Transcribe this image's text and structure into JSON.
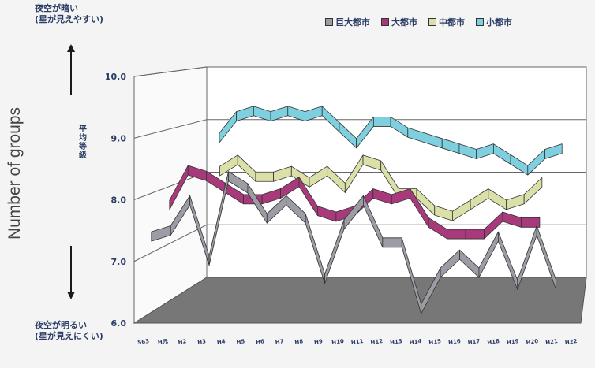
{
  "notes": {
    "top_line1": "夜空が暗い",
    "top_line2": "(星が見えやすい)",
    "bottom_line1": "夜空が明るい",
    "bottom_line2": "(星が見えにくい)"
  },
  "outer_ylabel": "Number of groups",
  "colors": {
    "grid": "#666666",
    "back_wall": "#ffffff",
    "floor": "#777777",
    "axis_text": "#2c3e66"
  },
  "chart_data": {
    "type": "line",
    "ylabel": "平均等級",
    "ylim": [
      6.0,
      10.0
    ],
    "yticks": [
      "10.0",
      "9.0",
      "8.0",
      "7.0",
      "6.0"
    ],
    "x": [
      "S63",
      "H元",
      "H2",
      "H3",
      "H4",
      "H5",
      "H6",
      "H7",
      "H8",
      "H9",
      "H10",
      "H11",
      "H12",
      "H13",
      "H14",
      "H15",
      "H16",
      "H17",
      "H18",
      "H19",
      "H20",
      "H21",
      "H22"
    ],
    "series": [
      {
        "name": "巨大都市",
        "color": "#9c9ca4",
        "values": [
          7.4,
          7.5,
          8.0,
          7.0,
          8.4,
          8.2,
          7.7,
          8.0,
          7.7,
          6.7,
          7.6,
          8.0,
          7.3,
          7.3,
          6.2,
          6.8,
          7.1,
          6.8,
          7.4,
          6.6,
          7.5,
          6.6,
          null
        ]
      },
      {
        "name": "大都市",
        "color": "#a83a7c",
        "values": [
          7.8,
          8.4,
          8.3,
          8.1,
          7.9,
          7.9,
          8.0,
          8.2,
          7.7,
          7.6,
          7.7,
          8.0,
          7.9,
          8.0,
          7.5,
          7.3,
          7.3,
          7.3,
          7.6,
          7.5,
          7.5,
          null,
          null
        ]
      },
      {
        "name": "中都市",
        "color": "#dbe0a8",
        "values": [
          null,
          null,
          8.3,
          8.5,
          8.2,
          8.2,
          8.3,
          8.1,
          8.3,
          8.0,
          8.5,
          8.4,
          7.9,
          7.9,
          7.6,
          7.5,
          7.7,
          7.9,
          7.7,
          7.8,
          8.1,
          null,
          null
        ]
      },
      {
        "name": "小都市",
        "color": "#7fd0df",
        "values": [
          null,
          8.8,
          9.2,
          9.3,
          9.2,
          9.3,
          9.2,
          9.3,
          9.0,
          8.7,
          9.1,
          9.1,
          8.9,
          8.8,
          8.7,
          8.6,
          8.5,
          8.6,
          8.4,
          8.2,
          8.5,
          8.6,
          null
        ]
      }
    ]
  }
}
